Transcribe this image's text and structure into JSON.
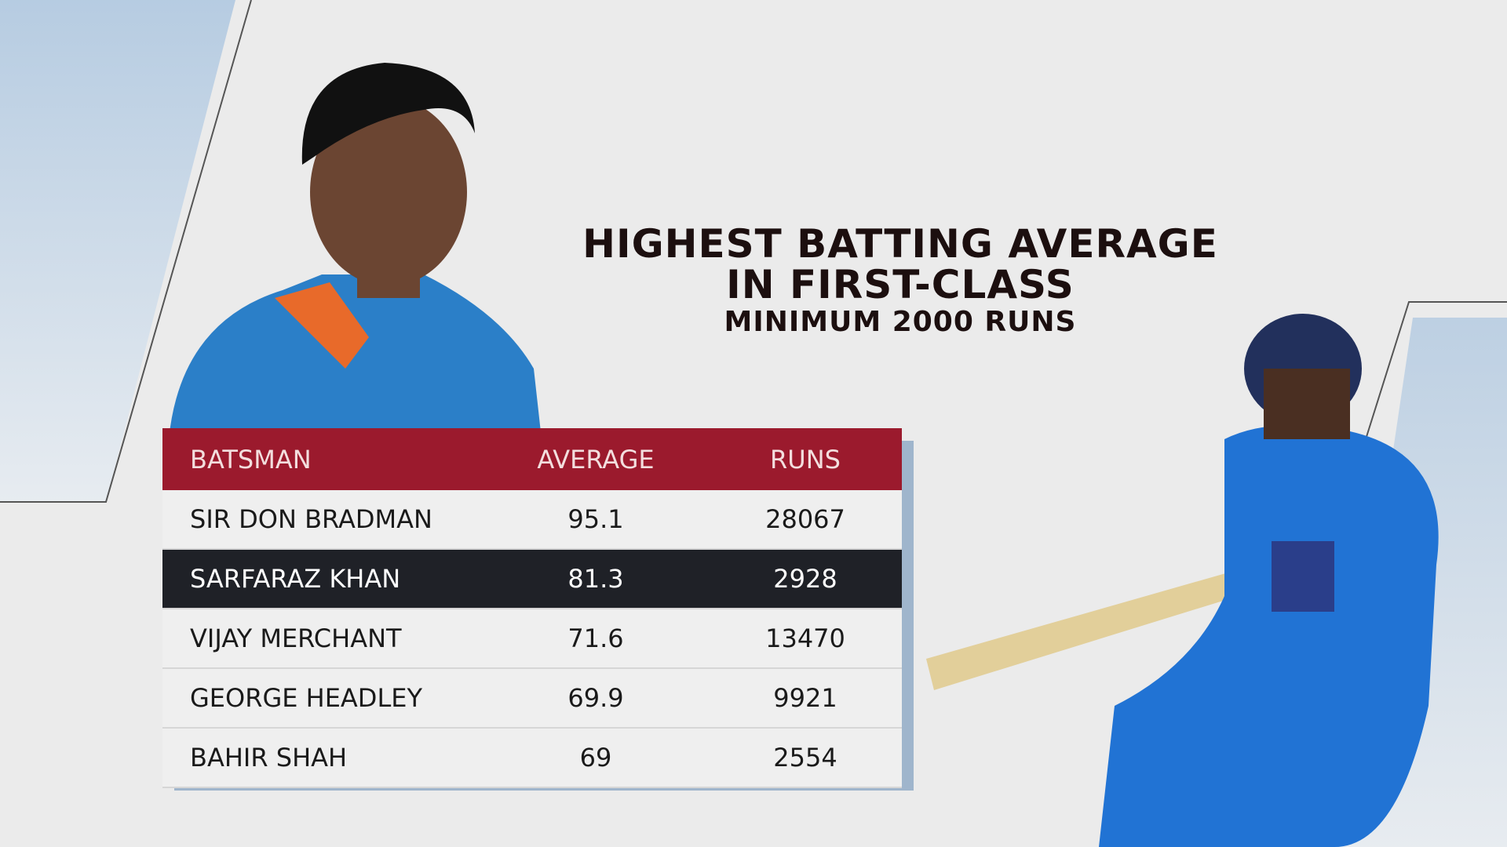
{
  "header": {
    "title_line1": "HIGHEST BATTING AVERAGE",
    "title_line2": "IN FIRST-CLASS",
    "subtitle": "MINIMUM 2000 RUNS"
  },
  "table": {
    "columns": [
      "BATSMAN",
      "AVERAGE",
      "RUNS"
    ],
    "rows": [
      [
        "SIR DON BRADMAN",
        95.1,
        28067
      ],
      [
        "SARFARAZ KHAN",
        81.3,
        2928
      ],
      [
        "VIJAY MERCHANT",
        71.6,
        13470
      ],
      [
        "GEORGE HEADLEY",
        69.9,
        9921
      ],
      [
        "BAHIR SHAH",
        69,
        2554
      ]
    ]
  }
}
